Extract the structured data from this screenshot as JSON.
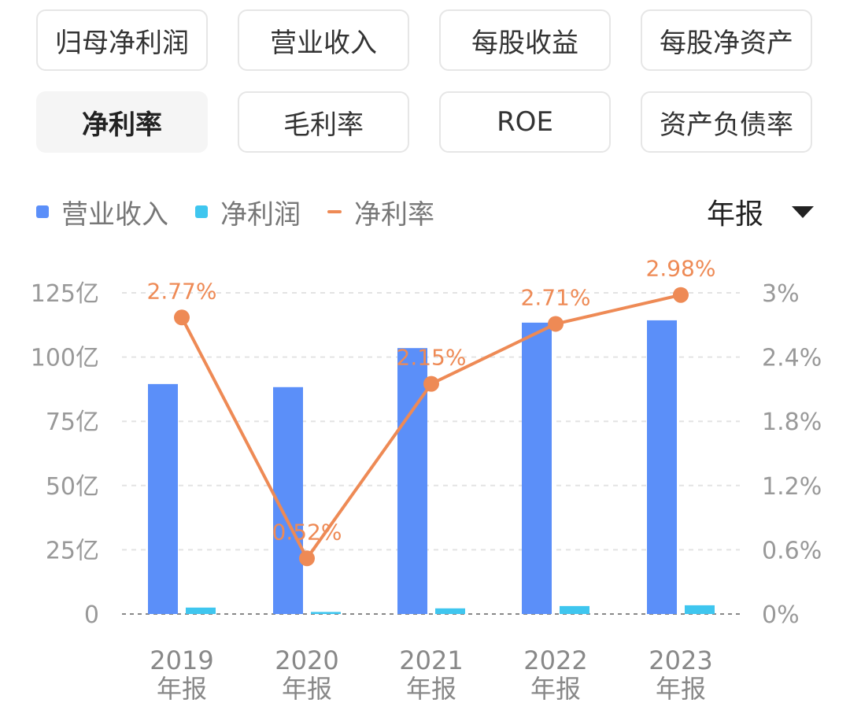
{
  "tabs": [
    {
      "label": "归母净利润",
      "active": false
    },
    {
      "label": "营业收入",
      "active": false
    },
    {
      "label": "每股收益",
      "active": false
    },
    {
      "label": "每股净资产",
      "active": false
    },
    {
      "label": "净利率",
      "active": true
    },
    {
      "label": "毛利率",
      "active": false
    },
    {
      "label": "ROE",
      "active": false
    },
    {
      "label": "资产负债率",
      "active": false
    }
  ],
  "period_selector": {
    "label": "年报"
  },
  "colors": {
    "revenue": "#5b8ff9",
    "net_profit": "#3fc6ef",
    "net_margin": "#ee8a55"
  },
  "chart_data": {
    "type": "bar",
    "categories": [
      {
        "year": "2019",
        "sub": "年报"
      },
      {
        "year": "2020",
        "sub": "年报"
      },
      {
        "year": "2021",
        "sub": "年报"
      },
      {
        "year": "2022",
        "sub": "年报"
      },
      {
        "year": "2023",
        "sub": "年报"
      }
    ],
    "series": [
      {
        "name": "营业收入",
        "kind": "bar",
        "axis": "left",
        "values": [
          89.5,
          88.3,
          103.5,
          113.4,
          114.3
        ]
      },
      {
        "name": "净利润",
        "kind": "bar",
        "axis": "left",
        "values": [
          2.5,
          0.8,
          2.2,
          3.1,
          3.4
        ]
      },
      {
        "name": "净利率",
        "kind": "line",
        "axis": "right",
        "values": [
          2.77,
          0.52,
          2.15,
          2.71,
          2.98
        ],
        "labels": [
          "2.77%",
          "0.52%",
          "2.15%",
          "2.71%",
          "2.98%"
        ]
      }
    ],
    "left_axis": {
      "min": 0,
      "max": 125,
      "ticks": [
        0,
        25,
        50,
        75,
        100,
        125
      ],
      "tick_labels": [
        "0",
        "25亿",
        "50亿",
        "75亿",
        "100亿",
        "125亿"
      ]
    },
    "right_axis": {
      "min": 0,
      "max": 3,
      "ticks": [
        0,
        0.6,
        1.2,
        1.8,
        2.4,
        3
      ],
      "tick_labels": [
        "0%",
        "0.6%",
        "1.2%",
        "1.8%",
        "2.4%",
        "3%"
      ]
    },
    "grid": true,
    "legend_position": "top-left"
  }
}
